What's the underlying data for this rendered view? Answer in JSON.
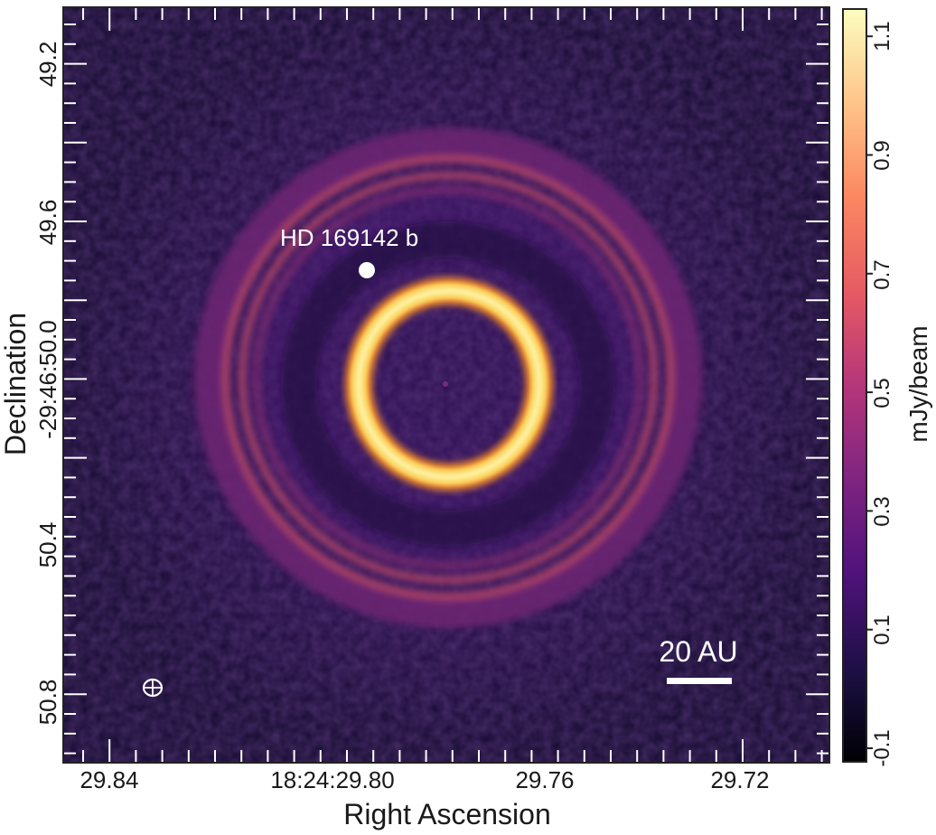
{
  "image": {
    "x_axis_label": "Right Ascension",
    "y_axis_label": "Declination",
    "x_tick_labels": [
      "29.84",
      "18:24:29.80",
      "29.76",
      "29.72"
    ],
    "y_tick_labels": [
      "49.2",
      "49.6",
      "-29:46:50.0",
      "50.4",
      "50.8"
    ],
    "planet_label": "HD 169142 b",
    "scale_bar_label": "20 AU",
    "colorbar": {
      "label": "mJy/beam",
      "tick_labels": [
        "-0.1",
        "0.1",
        "0.3",
        "0.5",
        "0.7",
        "0.9",
        "1.1"
      ]
    },
    "colors": {
      "background": "#170a33",
      "inner_ring": "#fbd866",
      "outer_rings": "#c8505c",
      "annotation": "#ffffff"
    }
  }
}
